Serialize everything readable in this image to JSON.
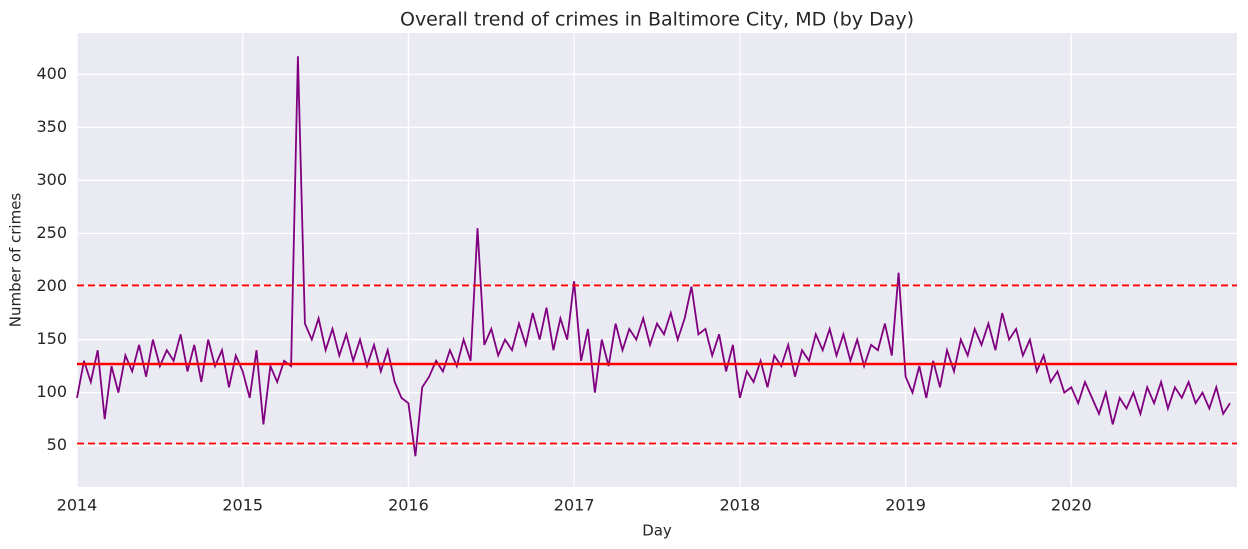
{
  "chart_data": {
    "type": "line",
    "title": "Overall trend of crimes in Baltimore City, MD (by Day)",
    "xlabel": "Day",
    "ylabel": "Number of crimes",
    "x": [
      2014,
      2014.042,
      2014.083,
      2014.125,
      2014.167,
      2014.208,
      2014.25,
      2014.292,
      2014.333,
      2014.375,
      2014.417,
      2014.458,
      2014.5,
      2014.542,
      2014.583,
      2014.625,
      2014.667,
      2014.708,
      2014.75,
      2014.792,
      2014.833,
      2014.875,
      2014.917,
      2014.958,
      2015,
      2015.042,
      2015.083,
      2015.125,
      2015.167,
      2015.208,
      2015.25,
      2015.292,
      2015.333,
      2015.375,
      2015.417,
      2015.458,
      2015.5,
      2015.542,
      2015.583,
      2015.625,
      2015.667,
      2015.708,
      2015.75,
      2015.792,
      2015.833,
      2015.875,
      2015.917,
      2015.958,
      2016,
      2016.042,
      2016.083,
      2016.125,
      2016.167,
      2016.208,
      2016.25,
      2016.292,
      2016.333,
      2016.375,
      2016.417,
      2016.458,
      2016.5,
      2016.542,
      2016.583,
      2016.625,
      2016.667,
      2016.708,
      2016.75,
      2016.792,
      2016.833,
      2016.875,
      2016.917,
      2016.958,
      2017,
      2017.042,
      2017.083,
      2017.125,
      2017.167,
      2017.208,
      2017.25,
      2017.292,
      2017.333,
      2017.375,
      2017.417,
      2017.458,
      2017.5,
      2017.542,
      2017.583,
      2017.625,
      2017.667,
      2017.708,
      2017.75,
      2017.792,
      2017.833,
      2017.875,
      2017.917,
      2017.958,
      2018,
      2018.042,
      2018.083,
      2018.125,
      2018.167,
      2018.208,
      2018.25,
      2018.292,
      2018.333,
      2018.375,
      2018.417,
      2018.458,
      2018.5,
      2018.542,
      2018.583,
      2018.625,
      2018.667,
      2018.708,
      2018.75,
      2018.792,
      2018.833,
      2018.875,
      2018.917,
      2018.958,
      2019,
      2019.042,
      2019.083,
      2019.125,
      2019.167,
      2019.208,
      2019.25,
      2019.292,
      2019.333,
      2019.375,
      2019.417,
      2019.458,
      2019.5,
      2019.542,
      2019.583,
      2019.625,
      2019.667,
      2019.708,
      2019.75,
      2019.792,
      2019.833,
      2019.875,
      2019.917,
      2019.958,
      2020,
      2020.042,
      2020.083,
      2020.125,
      2020.167,
      2020.208,
      2020.25,
      2020.292,
      2020.333,
      2020.375,
      2020.417,
      2020.458,
      2020.5,
      2020.542,
      2020.583,
      2020.625,
      2020.667,
      2020.708,
      2020.75,
      2020.792,
      2020.833,
      2020.875,
      2020.917,
      2020.958
    ],
    "series": [
      {
        "name": "Number of crimes",
        "color": "purple",
        "values": [
          95,
          130,
          110,
          140,
          75,
          125,
          100,
          135,
          120,
          145,
          115,
          150,
          125,
          140,
          130,
          155,
          120,
          145,
          110,
          150,
          125,
          140,
          105,
          135,
          120,
          95,
          140,
          70,
          125,
          110,
          130,
          125,
          417,
          165,
          150,
          170,
          140,
          160,
          135,
          155,
          130,
          150,
          125,
          145,
          120,
          140,
          110,
          95,
          90,
          40,
          105,
          115,
          130,
          120,
          140,
          125,
          150,
          130,
          255,
          145,
          160,
          135,
          150,
          140,
          165,
          145,
          175,
          150,
          180,
          140,
          170,
          150,
          205,
          130,
          160,
          100,
          150,
          125,
          165,
          140,
          160,
          150,
          170,
          145,
          165,
          155,
          175,
          150,
          170,
          200,
          155,
          160,
          135,
          155,
          120,
          145,
          95,
          120,
          110,
          130,
          105,
          135,
          125,
          145,
          115,
          140,
          130,
          155,
          140,
          160,
          135,
          155,
          130,
          150,
          125,
          145,
          140,
          165,
          135,
          213,
          115,
          100,
          125,
          95,
          130,
          105,
          140,
          120,
          150,
          135,
          160,
          145,
          165,
          140,
          175,
          150,
          160,
          135,
          150,
          120,
          135,
          110,
          120,
          100,
          105,
          90,
          110,
          95,
          80,
          100,
          70,
          95,
          85,
          100,
          80,
          105,
          90,
          110,
          85,
          105,
          95,
          110,
          90,
          100,
          85,
          105,
          80,
          90
        ]
      }
    ],
    "reference_lines": [
      {
        "value": 127,
        "color": "red",
        "style": "solid"
      },
      {
        "value": 201,
        "color": "red",
        "style": "dashed"
      },
      {
        "value": 52,
        "color": "red",
        "style": "dashed"
      }
    ],
    "xlim": [
      2014,
      2021
    ],
    "ylim": [
      11,
      439
    ],
    "xticks": [
      2014,
      2015,
      2016,
      2017,
      2018,
      2019,
      2020
    ],
    "yticks": [
      50,
      100,
      150,
      200,
      250,
      300,
      350,
      400
    ],
    "grid": true
  }
}
